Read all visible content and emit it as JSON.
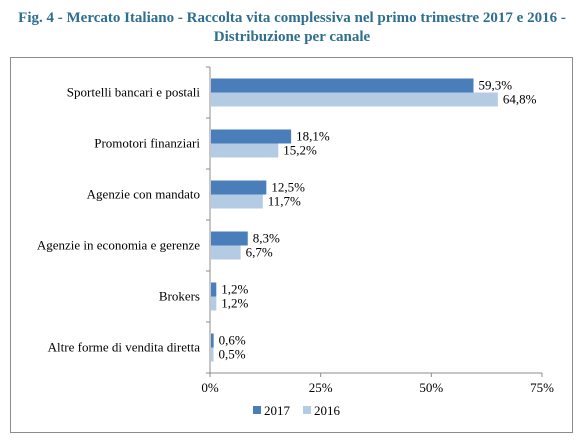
{
  "title_line1": "Fig. 4 - Mercato Italiano - Raccolta vita complessiva nel primo trimestre 2017 e 2016 -",
  "title_line2": "Distribuzione per canale",
  "colors": {
    "title": "#2e6e8e",
    "series_2017": "#4a7ebb",
    "series_2016": "#b4cbe4",
    "axis": "#8c8c8c"
  },
  "chart_data": {
    "type": "bar",
    "orientation": "horizontal",
    "categories": [
      "Sportelli bancari e postali",
      "Promotori finanziari",
      "Agenzie con mandato",
      "Agenzie in economia e gerenze",
      "Brokers",
      "Altre forme di vendita diretta"
    ],
    "series": [
      {
        "name": "2017",
        "values": [
          59.3,
          18.1,
          12.5,
          8.3,
          1.2,
          0.6
        ],
        "labels": [
          "59,3%",
          "18,1%",
          "12,5%",
          "8,3%",
          "1,2%",
          "0,6%"
        ]
      },
      {
        "name": "2016",
        "values": [
          64.8,
          15.2,
          11.7,
          6.7,
          1.2,
          0.5
        ],
        "labels": [
          "64,8%",
          "15,2%",
          "11,7%",
          "6,7%",
          "1,2%",
          "0,5%"
        ]
      }
    ],
    "xlim": [
      0,
      75
    ],
    "xticks": [
      0,
      25,
      50,
      75
    ],
    "xtick_labels": [
      "0%",
      "25%",
      "50%",
      "75%"
    ],
    "grid": false,
    "legend_position": "bottom"
  }
}
